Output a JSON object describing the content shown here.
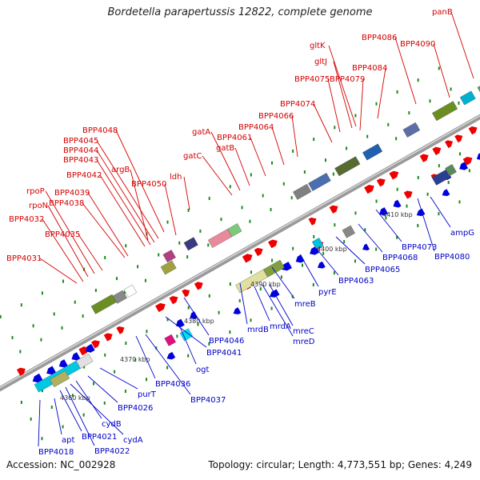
{
  "title": "Bordetella parapertussis 12822, complete genome",
  "footer": {
    "accession": "Accession: NC_002928",
    "summary": "Topology: circular; Length: 4,773,551 bp; Genes: 4,249"
  },
  "colors": {
    "forward_label": "#d40000",
    "reverse_label": "#0000c8",
    "forward_gene": "#ee0000",
    "reverse_gene": "#0000dd",
    "backbone": "#9a9a9a",
    "tick": "#1a8a1a"
  },
  "scale_ticks": [
    "4360 kbp",
    "4370 kbp",
    "4380 kbp",
    "4390 kbp",
    "4400 kbp",
    "4410 kbp"
  ],
  "forward_labels": [
    "panB",
    "BPP4086",
    "BPP4090",
    "gltK",
    "gltJ",
    "BPP4084",
    "BPP4075",
    "BPP4079",
    "BPP4074",
    "BPP4066",
    "BPP4064",
    "BPP4061",
    "gatA",
    "gatB",
    "gatC",
    "BPP4048",
    "BPP4045",
    "BPP4044",
    "BPP4043",
    "argB",
    "BPP4042",
    "ldh",
    "BPP4050",
    "rpoP",
    "BPP4039",
    "BPP4038",
    "rpoN",
    "BPP4032",
    "BPP4035",
    "BPP4031"
  ],
  "reverse_labels": [
    "ampG",
    "BPP4073",
    "BPP4080",
    "BPP4068",
    "BPP4065",
    "BPP4063",
    "pyrE",
    "mreB",
    "mreC",
    "mreD",
    "mrdA",
    "mrdB",
    "BPP4046",
    "BPP4041",
    "ogt",
    "BPP4036",
    "BPP4037",
    "purT",
    "BPP4026",
    "cydB",
    "cydA",
    "BPP4022",
    "BPP4021",
    "apt",
    "BPP4018"
  ]
}
